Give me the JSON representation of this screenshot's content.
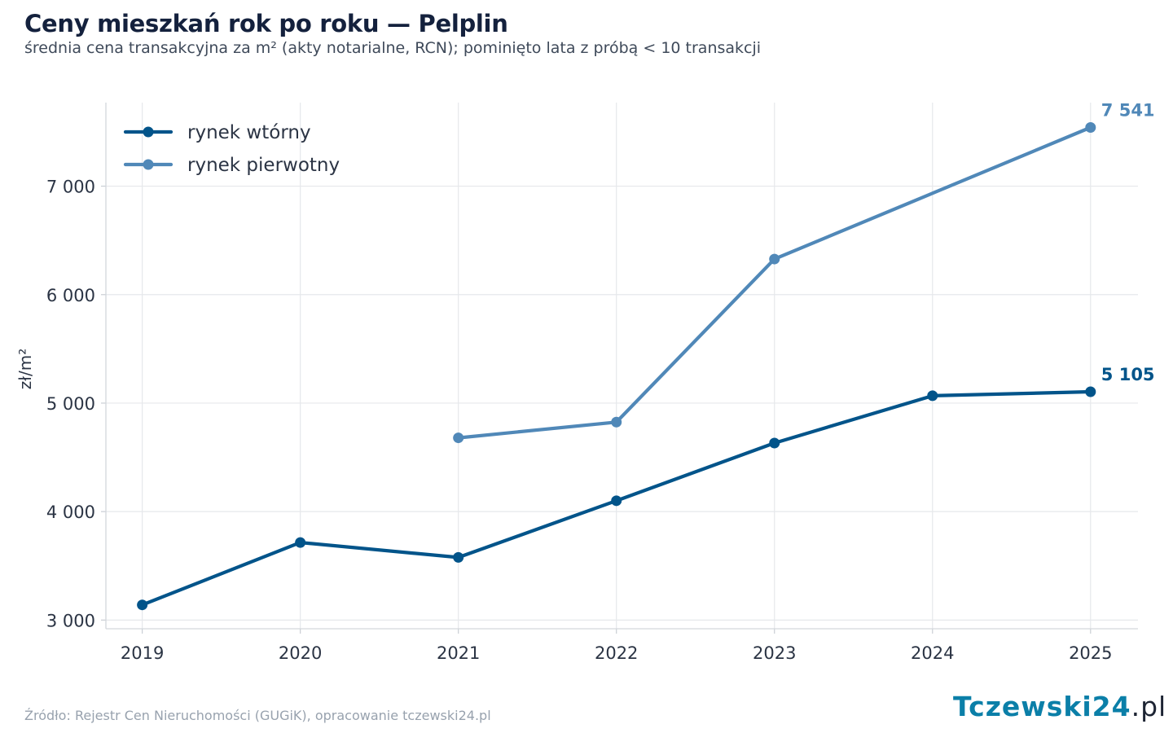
{
  "title": "Ceny mieszkań rok po roku — Pelplin",
  "subtitle": "średnia cena transakcyjna za m² (akty notarialne, RCN); pominięto lata z próbą < 10 transakcji",
  "source": "Źródło: Rejestr Cen Nieruchomości (GUGiK), opracowanie tczewski24.pl",
  "logo": {
    "main": "Tczewski24",
    "tld": ".pl"
  },
  "chart_data": {
    "type": "line",
    "title": "Ceny mieszkań rok po roku — Pelplin",
    "subtitle": "średnia cena transakcyjna za m² (akty notarialne, RCN); pominięto lata z próbą < 10 transakcji",
    "xlabel": "",
    "ylabel": "zł/m²",
    "x": [
      2019,
      2020,
      2021,
      2022,
      2023,
      2024,
      2025
    ],
    "x_tick_labels": [
      "2019",
      "2020",
      "2021",
      "2022",
      "2023",
      "2024",
      "2025"
    ],
    "y_ticks": [
      3000,
      4000,
      5000,
      6000,
      7000
    ],
    "y_tick_labels": [
      "3 000",
      "4 000",
      "5 000",
      "6 000",
      "7 000"
    ],
    "ylim": [
      2920,
      7770
    ],
    "xlim": [
      2018.77,
      2025.3
    ],
    "grid": true,
    "legend_position": "top-left",
    "series": [
      {
        "name": "rynek wtórny",
        "color": "#02548a",
        "values": [
          3140,
          3715,
          3578,
          4100,
          4632,
          5068,
          5105
        ],
        "end_label": "5 105"
      },
      {
        "name": "rynek pierwotny",
        "color": "#5088b8",
        "values": [
          null,
          null,
          4680,
          4825,
          6328,
          null,
          7541
        ],
        "end_label": "7 541"
      }
    ]
  }
}
